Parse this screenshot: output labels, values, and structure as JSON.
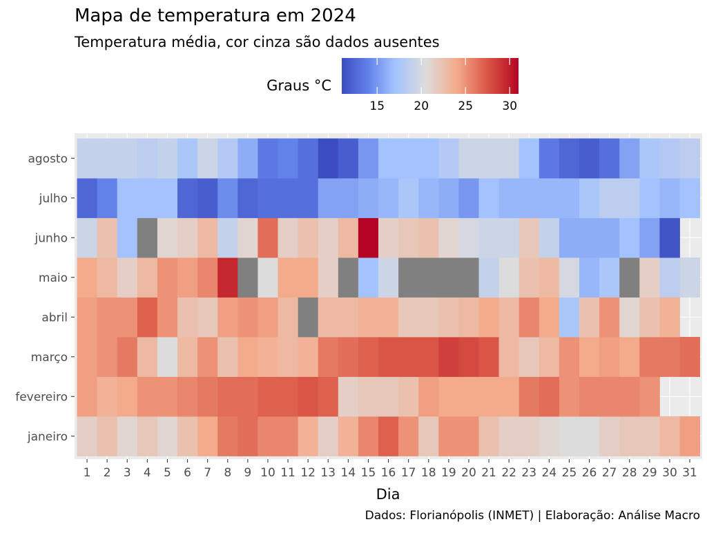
{
  "chart_data": {
    "type": "heatmap",
    "title": "Mapa de temperatura em 2024",
    "subtitle": "Temperatura média, cor cinza são dados ausentes",
    "xlabel": "Dia",
    "ylabel": "",
    "caption": "Dados: Florianópolis (INMET) | Elaboração: Análise Macro",
    "legend": {
      "title": "Graus °C",
      "position": "top",
      "range": [
        11,
        31
      ],
      "ticks": [
        15,
        20,
        25,
        30
      ],
      "tick_labels": [
        "15",
        "20",
        "25",
        "30"
      ]
    },
    "colorscale": {
      "stops": [
        {
          "v": 11,
          "c": "#3b4cc0"
        },
        {
          "v": 14,
          "c": "#6282ea"
        },
        {
          "v": 17,
          "c": "#a3c2fe"
        },
        {
          "v": 20.5,
          "c": "#dddcdc"
        },
        {
          "v": 24,
          "c": "#f4ab8c"
        },
        {
          "v": 27,
          "c": "#de614d"
        },
        {
          "v": 29.5,
          "c": "#c5282f"
        },
        {
          "v": 31,
          "c": "#b40426"
        }
      ],
      "missing_color": "#808080",
      "panel_color": "#ebebeb"
    },
    "x": [
      "1",
      "2",
      "3",
      "4",
      "5",
      "6",
      "7",
      "8",
      "9",
      "10",
      "11",
      "12",
      "13",
      "14",
      "15",
      "16",
      "17",
      "18",
      "19",
      "20",
      "21",
      "22",
      "23",
      "24",
      "25",
      "26",
      "27",
      "28",
      "29",
      "30",
      "31"
    ],
    "y": [
      "janeiro",
      "fevereiro",
      "março",
      "abril",
      "maio",
      "junho",
      "julho",
      "agosto"
    ],
    "values": [
      [
        21.5,
        22.5,
        21.0,
        22.0,
        21.0,
        22.5,
        24.0,
        26.0,
        26.5,
        25.5,
        25.5,
        23.5,
        21.5,
        23.5,
        25.5,
        27.0,
        25.0,
        22.0,
        25.0,
        25.0,
        22.5,
        21.5,
        21.5,
        21.0,
        20.5,
        20.5,
        21.5,
        22.0,
        22.0,
        23.0,
        24.5
      ],
      [
        24.5,
        23.5,
        24.0,
        25.0,
        25.0,
        25.5,
        26.0,
        26.5,
        26.5,
        27.0,
        27.0,
        27.5,
        27.0,
        21.5,
        22.0,
        22.0,
        22.5,
        24.5,
        24.0,
        24.0,
        24.0,
        24.0,
        26.0,
        26.5,
        25.0,
        25.5,
        25.5,
        25.5,
        25.0,
        null,
        null
      ],
      [
        24.5,
        25.0,
        26.0,
        23.0,
        20.5,
        23.0,
        25.0,
        22.5,
        24.0,
        23.5,
        23.0,
        23.5,
        26.0,
        26.5,
        27.0,
        27.5,
        27.5,
        27.5,
        28.5,
        28.0,
        27.5,
        23.0,
        22.0,
        23.0,
        25.0,
        24.0,
        24.5,
        24.0,
        26.0,
        26.0,
        26.5
      ],
      [
        24.5,
        25.0,
        25.0,
        27.0,
        25.0,
        22.5,
        22.0,
        24.5,
        25.0,
        24.5,
        23.0,
        "NA",
        23.0,
        23.0,
        23.5,
        23.5,
        22.0,
        22.0,
        22.5,
        23.0,
        24.0,
        23.0,
        25.5,
        24.0,
        17.5,
        22.5,
        25.0,
        21.0,
        22.5,
        23.5,
        null
      ],
      [
        24.0,
        23.0,
        21.5,
        23.0,
        25.0,
        24.5,
        25.5,
        29.5,
        "NA",
        20.5,
        24.0,
        24.0,
        21.5,
        "NA",
        17.0,
        19.5,
        "NA",
        "NA",
        "NA",
        "NA",
        19.0,
        20.5,
        22.5,
        23.0,
        20.0,
        16.5,
        17.5,
        "NA",
        21.5,
        18.5,
        19.5
      ],
      [
        19.5,
        22.5,
        17.0,
        "NA",
        21.0,
        21.5,
        23.0,
        19.0,
        21.0,
        26.5,
        21.5,
        22.5,
        21.5,
        23.0,
        31.0,
        21.5,
        22.0,
        22.5,
        21.0,
        20.0,
        19.5,
        19.5,
        22.0,
        19.0,
        16.0,
        16.0,
        16.0,
        17.0,
        15.5,
        11.5,
        null
      ],
      [
        12.5,
        14.0,
        17.0,
        17.0,
        17.0,
        12.5,
        12.0,
        14.5,
        12.5,
        13.0,
        13.0,
        13.0,
        15.5,
        15.5,
        16.0,
        16.5,
        17.5,
        16.5,
        16.0,
        15.0,
        17.0,
        16.5,
        16.5,
        16.5,
        16.5,
        17.5,
        18.5,
        18.5,
        17.0,
        16.5,
        17.0
      ],
      [
        19.0,
        19.0,
        19.0,
        18.5,
        19.0,
        17.5,
        19.5,
        18.0,
        16.0,
        13.5,
        14.0,
        13.0,
        11.0,
        12.0,
        15.0,
        17.0,
        17.0,
        17.0,
        18.0,
        19.5,
        19.5,
        19.5,
        17.0,
        13.5,
        12.5,
        12.0,
        13.0,
        15.5,
        17.5,
        18.0,
        18.5
      ]
    ]
  }
}
